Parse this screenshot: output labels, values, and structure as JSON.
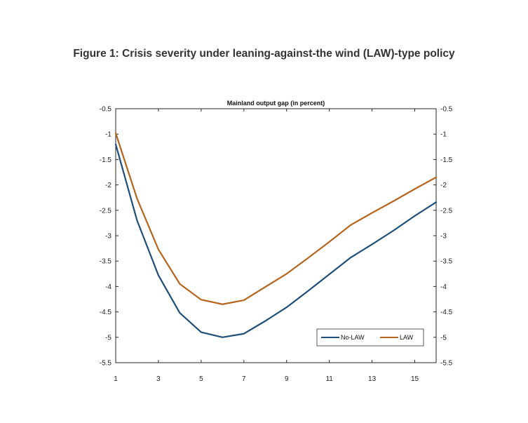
{
  "figure_title": "Figure 1: Crisis severity under leaning-against-the wind (LAW)-type policy",
  "chart_data": {
    "type": "line",
    "title": "Mainland output gap (in percent)",
    "xlabel": "",
    "ylabel": "",
    "xlim": [
      1,
      16
    ],
    "ylim": [
      -5.5,
      -0.5
    ],
    "x_ticks": [
      1,
      3,
      5,
      7,
      9,
      11,
      13,
      15
    ],
    "y_ticks": [
      -0.5,
      -1,
      -1.5,
      -2,
      -2.5,
      -3,
      -3.5,
      -4,
      -4.5,
      -5,
      -5.5
    ],
    "y_tick_labels": [
      "-0.5",
      "-1",
      "-1.5",
      "-2",
      "-2.5",
      "-3",
      "-3.5",
      "-4",
      "-4.5",
      "-5",
      "-5.5"
    ],
    "grid": false,
    "legend_position": "bottom-right",
    "x": [
      1,
      2,
      3,
      4,
      5,
      6,
      7,
      8,
      9,
      10,
      11,
      12,
      13,
      14,
      15,
      16
    ],
    "series": [
      {
        "name": "No-LAW",
        "color": "#1f4e79",
        "values": [
          -1.2,
          -2.7,
          -3.78,
          -4.52,
          -4.9,
          -5.0,
          -4.93,
          -4.68,
          -4.41,
          -4.09,
          -3.76,
          -3.43,
          -3.17,
          -2.9,
          -2.61,
          -2.34
        ]
      },
      {
        "name": "LAW",
        "color": "#b5651d",
        "values": [
          -0.98,
          -2.27,
          -3.27,
          -3.95,
          -4.26,
          -4.35,
          -4.27,
          -4.01,
          -3.75,
          -3.44,
          -3.12,
          -2.79,
          -2.55,
          -2.32,
          -2.08,
          -1.85
        ]
      }
    ]
  }
}
